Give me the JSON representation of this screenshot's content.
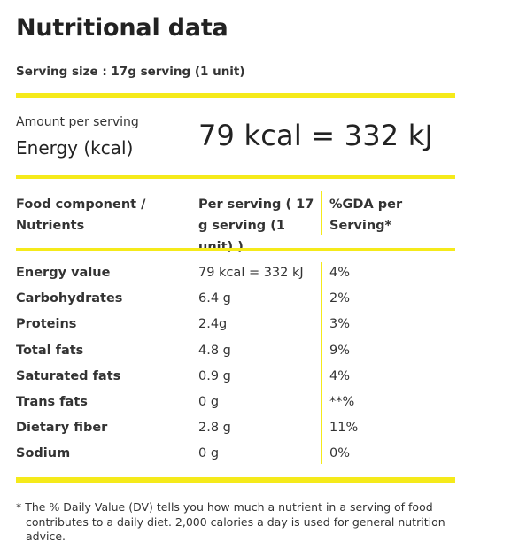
{
  "title": "Nutritional data",
  "serving_size": "Serving size : 17g serving (1 unit)",
  "colors": {
    "accent_bar": "#f5ea1a",
    "text": "#222222"
  },
  "energy": {
    "amount_label": "Amount per serving",
    "label": "Energy (kcal)",
    "value": "79 kcal = 332 kJ"
  },
  "table": {
    "headers": {
      "component": "Food component / Nutrients",
      "per_serving": "Per serving ( 17 g serving (1 unit) )",
      "gda": "%GDA per Serving*"
    },
    "rows": [
      {
        "name": "Energy value",
        "value": "79 kcal = 332 kJ",
        "gda": "4%"
      },
      {
        "name": "Carbohydrates",
        "value": "6.4 g",
        "gda": "2%"
      },
      {
        "name": "Proteins",
        "value": "2.4g",
        "gda": "3%"
      },
      {
        "name": "Total fats",
        "value": "4.8 g",
        "gda": "9%"
      },
      {
        "name": "Saturated fats",
        "value": "0.9 g",
        "gda": "4%"
      },
      {
        "name": "Trans fats",
        "value": "0 g",
        "gda": "**%"
      },
      {
        "name": "Dietary fiber",
        "value": "2.8 g",
        "gda": "11%"
      },
      {
        "name": "Sodium",
        "value": "0 g",
        "gda": "0%"
      }
    ]
  },
  "footnote": "* The % Daily Value (DV) tells you how much a nutrient in a serving of food contributes to a daily diet. 2,000 calories a day is used for general nutrition advice."
}
